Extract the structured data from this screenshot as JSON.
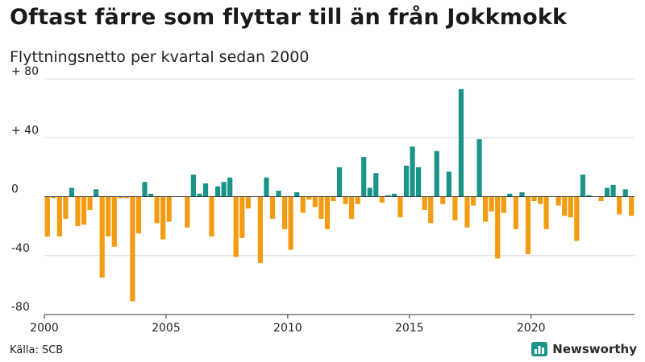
{
  "header": {
    "title": "Oftast färre som flyttar till än från Jokkmokk",
    "subtitle": "Flyttningsnetto per kvartal sedan 2000"
  },
  "footer": {
    "source": "Källa: SCB",
    "brand": "Newsworthy",
    "brand_icon": "bar-chart-icon",
    "brand_color": "#1a9488"
  },
  "chart_data": {
    "type": "bar",
    "title": "",
    "xlabel": "",
    "ylabel": "",
    "ylim": [
      -80,
      80
    ],
    "xlim": [
      2000,
      2024.25
    ],
    "y_ticks": [
      80,
      40,
      0,
      -40,
      -80
    ],
    "y_tick_labels": [
      "+ 80",
      "+ 40",
      "0",
      "-40",
      "-80"
    ],
    "x_ticks": [
      2000,
      2005,
      2010,
      2015,
      2020
    ],
    "x_tick_labels": [
      "2000",
      "2005",
      "2010",
      "2015",
      "2020"
    ],
    "grid": "horizontal",
    "colors": {
      "positive": "#1a9488",
      "negative": "#f39c12"
    },
    "x": [
      "2000-Q1",
      "2000-Q2",
      "2000-Q3",
      "2000-Q4",
      "2001-Q1",
      "2001-Q2",
      "2001-Q3",
      "2001-Q4",
      "2002-Q1",
      "2002-Q2",
      "2002-Q3",
      "2002-Q4",
      "2003-Q1",
      "2003-Q2",
      "2003-Q3",
      "2003-Q4",
      "2004-Q1",
      "2004-Q2",
      "2004-Q3",
      "2004-Q4",
      "2005-Q1",
      "2005-Q2",
      "2005-Q3",
      "2005-Q4",
      "2006-Q1",
      "2006-Q2",
      "2006-Q3",
      "2006-Q4",
      "2007-Q1",
      "2007-Q2",
      "2007-Q3",
      "2007-Q4",
      "2008-Q1",
      "2008-Q2",
      "2008-Q3",
      "2008-Q4",
      "2009-Q1",
      "2009-Q2",
      "2009-Q3",
      "2009-Q4",
      "2010-Q1",
      "2010-Q2",
      "2010-Q3",
      "2010-Q4",
      "2011-Q1",
      "2011-Q2",
      "2011-Q3",
      "2011-Q4",
      "2012-Q1",
      "2012-Q2",
      "2012-Q3",
      "2012-Q4",
      "2013-Q1",
      "2013-Q2",
      "2013-Q3",
      "2013-Q4",
      "2014-Q1",
      "2014-Q2",
      "2014-Q3",
      "2014-Q4",
      "2015-Q1",
      "2015-Q2",
      "2015-Q3",
      "2015-Q4",
      "2016-Q1",
      "2016-Q2",
      "2016-Q3",
      "2016-Q4",
      "2017-Q1",
      "2017-Q2",
      "2017-Q3",
      "2017-Q4",
      "2018-Q1",
      "2018-Q2",
      "2018-Q3",
      "2018-Q4",
      "2019-Q1",
      "2019-Q2",
      "2019-Q3",
      "2019-Q4",
      "2020-Q1",
      "2020-Q2",
      "2020-Q3",
      "2020-Q4",
      "2021-Q1",
      "2021-Q2",
      "2021-Q3",
      "2021-Q4",
      "2022-Q1",
      "2022-Q2",
      "2022-Q3",
      "2022-Q4",
      "2023-Q1",
      "2023-Q2",
      "2023-Q3",
      "2023-Q4",
      "2024-Q1"
    ],
    "values": [
      -27,
      -1,
      -27,
      -15,
      6,
      -20,
      -19,
      -9,
      5,
      -55,
      -27,
      -34,
      -1,
      -1,
      -71,
      -25,
      10,
      2,
      -18,
      -29,
      -17,
      0,
      0,
      -21,
      15,
      2,
      9,
      -27,
      7,
      10,
      13,
      -41,
      -28,
      -8,
      0,
      -45,
      13,
      -15,
      4,
      -22,
      -36,
      3,
      -11,
      -2,
      -7,
      -15,
      -22,
      -3,
      20,
      -5,
      -15,
      -5,
      27,
      6,
      16,
      -4,
      1,
      2,
      -14,
      21,
      34,
      20,
      -9,
      -18,
      31,
      -5,
      17,
      -16,
      73,
      -21,
      -6,
      39,
      -17,
      -10,
      -42,
      -11,
      2,
      -22,
      3,
      -39,
      -3,
      -5,
      -22,
      0,
      -6,
      -13,
      -14,
      -30,
      15,
      1,
      0,
      -3,
      6,
      8,
      -12,
      5,
      -13
    ]
  }
}
